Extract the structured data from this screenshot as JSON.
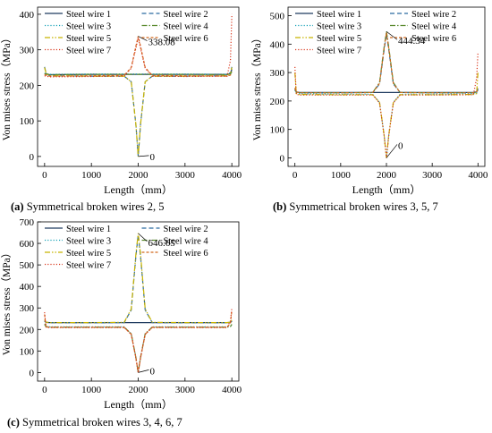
{
  "chart_data": [
    {
      "type": "line",
      "panel_label": "(a)",
      "caption": "Symmetrical broken wires 2, 5",
      "xlabel": "Length（mm）",
      "ylabel": "Von mises stress（MPa）",
      "xlim": [
        -150,
        4150
      ],
      "ylim": [
        -28,
        420
      ],
      "xticks": [
        0,
        1000,
        2000,
        3000,
        4000
      ],
      "yticks": [
        0,
        100,
        200,
        300,
        400
      ],
      "legend_location": "top",
      "series": [
        {
          "name": "Steel wire 1",
          "color": "#1f3a5f",
          "dash": "solid",
          "x": [
            0,
            30,
            100,
            1000,
            2000,
            3000,
            3900,
            3970,
            4000
          ],
          "y": [
            232,
            233,
            230,
            231,
            231,
            231,
            231,
            234,
            245
          ]
        },
        {
          "name": "Steel wire 2",
          "color": "#2a6aa0",
          "dash": "dash",
          "x": [
            0,
            30,
            100,
            1000,
            1700,
            1850,
            1950,
            2000,
            2050,
            2150,
            2300,
            3000,
            3900,
            3970,
            4000
          ],
          "y": [
            252,
            236,
            227,
            226,
            226,
            210,
            90,
            0,
            90,
            210,
            226,
            226,
            227,
            236,
            252
          ]
        },
        {
          "name": "Steel wire 3",
          "color": "#17a2b8",
          "dash": "dot",
          "x": [
            0,
            30,
            100,
            1000,
            2000,
            3000,
            3900,
            3970,
            4000
          ],
          "y": [
            234,
            233,
            231,
            232,
            232,
            232,
            231,
            233,
            240
          ]
        },
        {
          "name": "Steel wire 4",
          "color": "#5a8a2e",
          "dash": "dashdot",
          "x": [
            0,
            30,
            100,
            1000,
            2000,
            3000,
            3900,
            3970,
            4000
          ],
          "y": [
            233,
            232,
            230,
            231,
            231,
            231,
            230,
            232,
            238
          ]
        },
        {
          "name": "Steel wire 5",
          "color": "#c8b400",
          "dash": "dashdotdot",
          "x": [
            0,
            30,
            100,
            1000,
            1700,
            1850,
            1950,
            2000,
            2050,
            2150,
            2300,
            3000,
            3900,
            3970,
            4000
          ],
          "y": [
            250,
            235,
            227,
            226,
            226,
            210,
            90,
            0,
            90,
            210,
            226,
            226,
            227,
            235,
            250
          ]
        },
        {
          "name": "Steel wire 6",
          "color": "#d2691e",
          "dash": "shortdash",
          "x": [
            0,
            30,
            100,
            1000,
            1700,
            1850,
            1950,
            2000,
            2050,
            2150,
            2300,
            3000,
            3900,
            3970,
            4000
          ],
          "y": [
            230,
            229,
            226,
            227,
            228,
            250,
            310,
            338.08,
            310,
            250,
            228,
            227,
            226,
            229,
            232
          ]
        },
        {
          "name": "Steel wire 7",
          "color": "#d9381e",
          "dash": "dot",
          "x": [
            0,
            30,
            100,
            1000,
            1700,
            1850,
            1950,
            2000,
            2050,
            2150,
            2300,
            3000,
            3900,
            3970,
            4000
          ],
          "y": [
            227,
            226,
            224,
            225,
            226,
            248,
            305,
            334,
            305,
            248,
            226,
            225,
            226,
            270,
            400
          ]
        }
      ],
      "annotations": [
        {
          "text": "338.08",
          "x": 2000,
          "y": 338.08
        },
        {
          "text": "0",
          "x": 2000,
          "y": 0
        }
      ]
    },
    {
      "type": "line",
      "panel_label": "(b)",
      "caption": "Symmetrical broken wires 3, 5, 7",
      "xlabel": "Length（mm）",
      "ylabel": "Von mises stress（MPa）",
      "xlim": [
        -150,
        4150
      ],
      "ylim": [
        -30,
        530
      ],
      "xticks": [
        0,
        1000,
        2000,
        3000,
        4000
      ],
      "yticks": [
        0,
        100,
        200,
        300,
        400,
        500
      ],
      "legend_location": "top",
      "series": [
        {
          "name": "Steel wire 1",
          "color": "#1f3a5f",
          "dash": "solid",
          "x": [
            0,
            30,
            100,
            1000,
            2000,
            3000,
            3900,
            3970,
            4000
          ],
          "y": [
            240,
            232,
            230,
            230,
            230,
            230,
            230,
            232,
            240
          ]
        },
        {
          "name": "Steel wire 2",
          "color": "#2a6aa0",
          "dash": "dash",
          "x": [
            0,
            30,
            100,
            1000,
            1700,
            1850,
            1950,
            2000,
            2050,
            2150,
            2300,
            3000,
            3900,
            3970,
            4000
          ],
          "y": [
            245,
            232,
            229,
            229,
            230,
            260,
            380,
            436,
            380,
            260,
            230,
            229,
            229,
            232,
            245
          ]
        },
        {
          "name": "Steel wire 3",
          "color": "#17a2b8",
          "dash": "dot",
          "x": [
            0,
            30,
            100,
            1000,
            1700,
            1850,
            1950,
            2000,
            2050,
            2150,
            2300,
            3000,
            3900,
            3970,
            4000
          ],
          "y": [
            238,
            228,
            225,
            224,
            224,
            195,
            80,
            0,
            80,
            195,
            224,
            224,
            225,
            228,
            238
          ]
        },
        {
          "name": "Steel wire 4",
          "color": "#5a8a2e",
          "dash": "dashdot",
          "x": [
            0,
            30,
            100,
            1000,
            1700,
            1850,
            1950,
            2000,
            2050,
            2150,
            2300,
            3000,
            3900,
            3970,
            4000
          ],
          "y": [
            244,
            231,
            229,
            229,
            230,
            265,
            390,
            444.34,
            390,
            265,
            230,
            229,
            229,
            231,
            244
          ]
        },
        {
          "name": "Steel wire 5",
          "color": "#c8b400",
          "dash": "dashdotdot",
          "x": [
            0,
            30,
            100,
            1000,
            1700,
            1850,
            1950,
            2000,
            2050,
            2150,
            2300,
            3000,
            3900,
            3970,
            4000
          ],
          "y": [
            300,
            226,
            223,
            222,
            222,
            195,
            80,
            0,
            80,
            195,
            222,
            222,
            223,
            226,
            300
          ]
        },
        {
          "name": "Steel wire 6",
          "color": "#d2691e",
          "dash": "shortdash",
          "x": [
            0,
            30,
            100,
            1000,
            1700,
            1850,
            1950,
            2000,
            2050,
            2150,
            2300,
            3000,
            3900,
            3970,
            4000
          ],
          "y": [
            246,
            232,
            229,
            229,
            230,
            262,
            385,
            440,
            385,
            262,
            230,
            229,
            229,
            232,
            246
          ]
        },
        {
          "name": "Steel wire 7",
          "color": "#d9381e",
          "dash": "dot",
          "x": [
            0,
            30,
            100,
            1000,
            1700,
            1850,
            1950,
            2000,
            2050,
            2150,
            2300,
            3000,
            3900,
            3970,
            4000
          ],
          "y": [
            320,
            224,
            221,
            221,
            221,
            193,
            78,
            0,
            78,
            193,
            221,
            221,
            222,
            280,
            370
          ]
        }
      ],
      "annotations": [
        {
          "text": "444.34",
          "x": 2000,
          "y": 444.34
        },
        {
          "text": "0",
          "x": 2000,
          "y": 0
        }
      ]
    },
    {
      "type": "line",
      "panel_label": "(c)",
      "caption": "Symmetrical broken wires 3, 4, 6, 7",
      "xlabel": "Length（mm）",
      "ylabel": "Von mises stress（MPa）",
      "xlim": [
        -150,
        4150
      ],
      "ylim": [
        -40,
        700
      ],
      "xticks": [
        0,
        1000,
        2000,
        3000,
        4000
      ],
      "yticks": [
        0,
        100,
        200,
        300,
        400,
        500,
        600,
        700
      ],
      "legend_location": "top",
      "series": [
        {
          "name": "Steel wire 1",
          "color": "#1f3a5f",
          "dash": "solid",
          "x": [
            0,
            30,
            100,
            1000,
            2000,
            3000,
            3900,
            3970,
            4000
          ],
          "y": [
            238,
            233,
            232,
            232,
            232,
            232,
            232,
            233,
            238
          ]
        },
        {
          "name": "Steel wire 2",
          "color": "#2a6aa0",
          "dash": "dash",
          "x": [
            0,
            30,
            100,
            1000,
            1700,
            1850,
            1950,
            2000,
            2050,
            2150,
            2300,
            3000,
            3900,
            3970,
            4000
          ],
          "y": [
            240,
            233,
            231,
            231,
            232,
            290,
            540,
            640,
            540,
            290,
            232,
            231,
            231,
            233,
            240
          ]
        },
        {
          "name": "Steel wire 3",
          "color": "#17a2b8",
          "dash": "dot",
          "x": [
            0,
            30,
            100,
            1000,
            1700,
            1850,
            1950,
            2000,
            2050,
            2150,
            2300,
            3000,
            3900,
            3970,
            4000
          ],
          "y": [
            225,
            214,
            212,
            212,
            212,
            180,
            70,
            0,
            70,
            180,
            212,
            212,
            212,
            214,
            225
          ]
        },
        {
          "name": "Steel wire 4",
          "color": "#5a8a2e",
          "dash": "dashdot",
          "x": [
            0,
            30,
            100,
            1000,
            1700,
            1850,
            1950,
            2000,
            2050,
            2150,
            2300,
            3000,
            3900,
            3970,
            4000
          ],
          "y": [
            224,
            213,
            211,
            211,
            211,
            180,
            70,
            0,
            70,
            180,
            211,
            211,
            211,
            213,
            224
          ]
        },
        {
          "name": "Steel wire 5",
          "color": "#c8b400",
          "dash": "dashdotdot",
          "x": [
            0,
            30,
            100,
            1000,
            1700,
            1850,
            1950,
            2000,
            2050,
            2150,
            2300,
            3000,
            3900,
            3970,
            4000
          ],
          "y": [
            245,
            234,
            232,
            232,
            233,
            295,
            550,
            646.65,
            550,
            295,
            233,
            232,
            232,
            234,
            245
          ]
        },
        {
          "name": "Steel wire 6",
          "color": "#d2691e",
          "dash": "shortdash",
          "x": [
            0,
            30,
            100,
            1000,
            1700,
            1850,
            1950,
            2000,
            2050,
            2150,
            2300,
            3000,
            3900,
            3970,
            4000
          ],
          "y": [
            270,
            212,
            210,
            210,
            210,
            178,
            68,
            0,
            68,
            178,
            210,
            210,
            210,
            230,
            290
          ]
        },
        {
          "name": "Steel wire 7",
          "color": "#d9381e",
          "dash": "dot",
          "x": [
            0,
            30,
            100,
            1000,
            1700,
            1850,
            1950,
            2000,
            2050,
            2150,
            2300,
            3000,
            3900,
            3970,
            4000
          ],
          "y": [
            280,
            211,
            209,
            209,
            209,
            177,
            67,
            0,
            67,
            177,
            209,
            209,
            209,
            240,
            300
          ]
        }
      ],
      "annotations": [
        {
          "text": "646.65",
          "x": 2000,
          "y": 646.65
        },
        {
          "text": "0",
          "x": 2000,
          "y": 0
        }
      ]
    }
  ]
}
